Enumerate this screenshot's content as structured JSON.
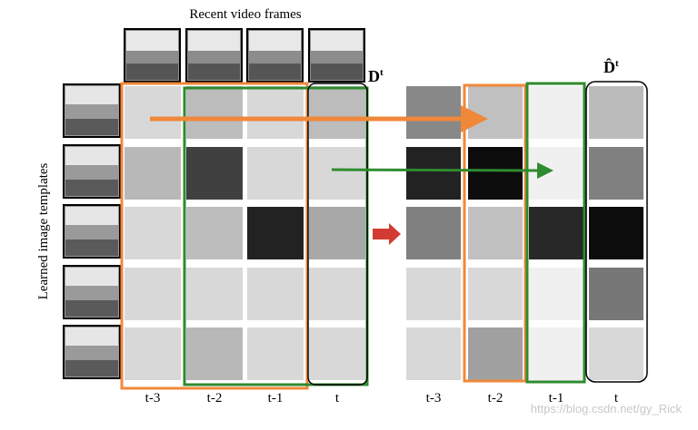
{
  "top_label": "Recent video frames",
  "side_label": "Learned image templates",
  "left_matrix": {
    "symbol": "D",
    "superscript": "t",
    "columns": [
      "t-3",
      "t-2",
      "t-1",
      "t"
    ]
  },
  "right_matrix": {
    "symbol": "D̂",
    "superscript": "t",
    "columns": [
      "t-3",
      "t-2",
      "t-1",
      "t"
    ]
  },
  "watermark": "https://blog.csdn.net/gy_Rick"
}
